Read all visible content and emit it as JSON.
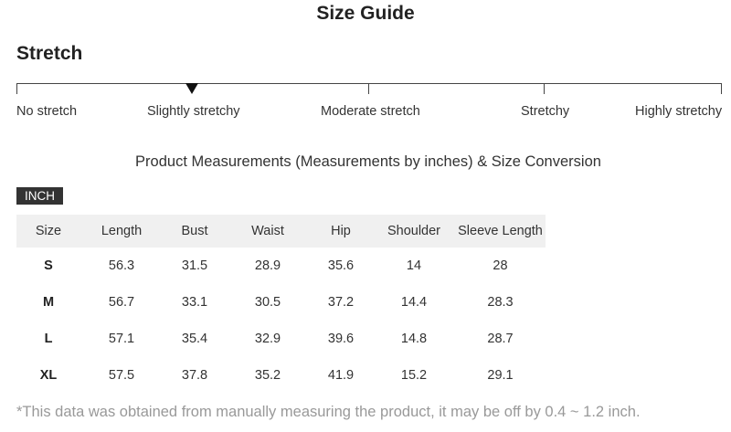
{
  "page_title": "Size Guide",
  "stretch": {
    "title": "Stretch",
    "levels": [
      "No stretch",
      "Slightly stretchy",
      "Moderate stretch",
      "Stretchy",
      "Highly stretchy"
    ],
    "selected_level": "Slightly stretchy"
  },
  "measurements": {
    "subtitle": "Product Measurements (Measurements by inches) & Size Conversion",
    "unit_badge": "INCH",
    "columns": [
      "Size",
      "Length",
      "Bust",
      "Waist",
      "Hip",
      "Shoulder",
      "Sleeve Length"
    ],
    "rows": [
      [
        "S",
        "56.3",
        "31.5",
        "28.9",
        "35.6",
        "14",
        "28"
      ],
      [
        "M",
        "56.7",
        "33.1",
        "30.5",
        "37.2",
        "14.4",
        "28.3"
      ],
      [
        "L",
        "57.1",
        "35.4",
        "32.9",
        "39.6",
        "14.8",
        "28.7"
      ],
      [
        "XL",
        "57.5",
        "37.8",
        "35.2",
        "41.9",
        "15.2",
        "29.1"
      ]
    ]
  },
  "footnote": "*This data was obtained from manually measuring the product, it may be off by 0.4 ~ 1.2 inch.",
  "colors": {
    "text": "#333333",
    "header_background": "#f0f0f0",
    "badge_background": "#333333",
    "footnote_text": "#999999"
  }
}
